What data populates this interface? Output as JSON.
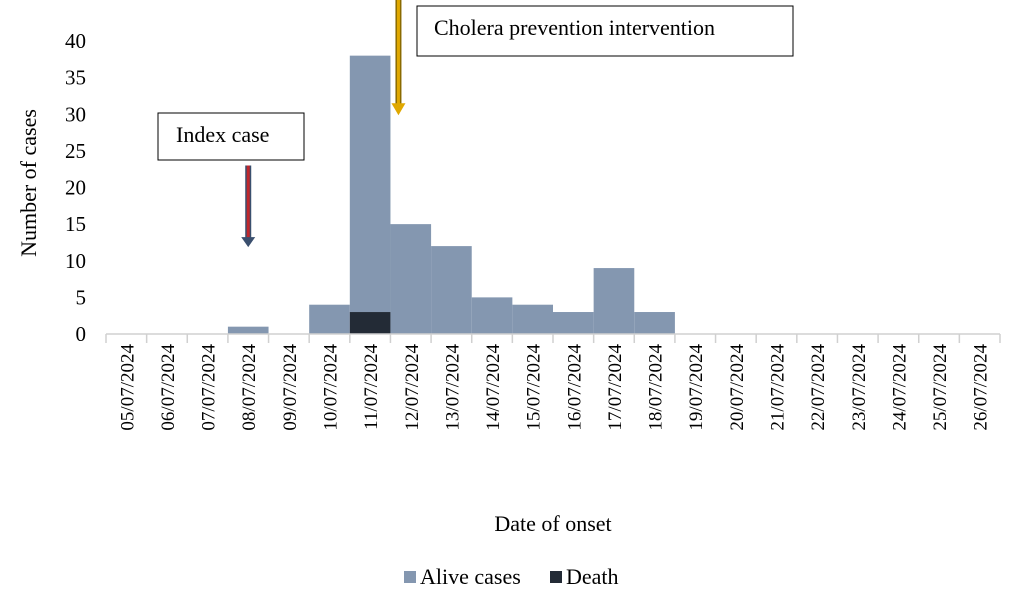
{
  "chart_data": {
    "type": "bar",
    "stacked": true,
    "xlabel": "Date of onset",
    "ylabel": "Number of cases",
    "ylim": [
      0,
      40
    ],
    "yticks": [
      0,
      5,
      10,
      15,
      20,
      25,
      30,
      35,
      40
    ],
    "grid": false,
    "legend_position": "bottom",
    "categories": [
      "05/07/2024",
      "06/07/2024",
      "07/07/2024",
      "08/07/2024",
      "09/07/2024",
      "10/07/2024",
      "11/07/2024",
      "12/07/2024",
      "13/07/2024",
      "14/07/2024",
      "15/07/2024",
      "16/07/2024",
      "17/07/2024",
      "18/07/2024",
      "19/07/2024",
      "20/07/2024",
      "21/07/2024",
      "22/07/2024",
      "23/07/2024",
      "24/07/2024",
      "25/07/2024",
      "26/07/2024"
    ],
    "series": [
      {
        "name": "Death",
        "color": "#232b36",
        "values": [
          0,
          0,
          0,
          0,
          0,
          0,
          3,
          0,
          0,
          0,
          0,
          0,
          0,
          0,
          0,
          0,
          0,
          0,
          0,
          0,
          0,
          0
        ]
      },
      {
        "name": "Alive cases",
        "color": "#8497b0",
        "values": [
          0,
          0,
          0,
          1,
          0,
          4,
          35,
          15,
          12,
          5,
          4,
          3,
          9,
          3,
          0,
          0,
          0,
          0,
          0,
          0,
          0,
          0
        ]
      }
    ],
    "legend_order": [
      "Alive cases",
      "Death"
    ],
    "annotations": [
      {
        "text": "Index case",
        "category": "08/07/2024",
        "arrow_color": "#c0272d",
        "arrow_from": 23,
        "arrow_to": 12
      },
      {
        "text": "Cholera prevention intervention",
        "category": "12/07/2024",
        "arrow_color": "#e0a800",
        "arrow_from": 45,
        "arrow_to": 30
      }
    ]
  }
}
